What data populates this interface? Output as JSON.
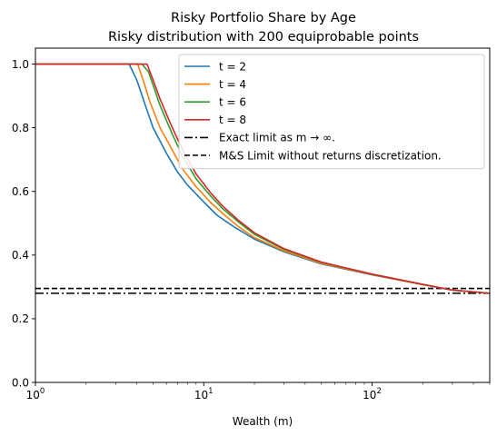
{
  "chart_data": {
    "type": "line",
    "title": "Risky Portfolio Share by Age",
    "subtitle": "Risky distribution with 200 equiprobable points",
    "xlabel": "Wealth (m)",
    "ylabel": "",
    "xscale": "log",
    "xlim": [
      1,
      500
    ],
    "ylim": [
      0,
      1.05
    ],
    "grid": false,
    "legend_position": "top-right",
    "x_ticks": [
      {
        "value": 1,
        "base": "10",
        "exp": "0"
      },
      {
        "value": 10,
        "base": "10",
        "exp": "1"
      },
      {
        "value": 100,
        "base": "10",
        "exp": "2"
      }
    ],
    "y_ticks": [
      {
        "value": 0,
        "label": "0.0"
      },
      {
        "value": 0.2,
        "label": "0.2"
      },
      {
        "value": 0.4,
        "label": "0.4"
      },
      {
        "value": 0.6,
        "label": "0.6"
      },
      {
        "value": 0.8,
        "label": "0.8"
      },
      {
        "value": 1.0,
        "label": "1.0"
      }
    ],
    "series": [
      {
        "name": "t = 2",
        "color": "#1f77b4",
        "x": [
          1,
          3.6,
          4.0,
          4.5,
          5.0,
          6,
          7,
          8,
          10,
          12,
          15,
          20,
          30,
          50,
          100,
          200,
          300,
          500
        ],
        "y": [
          1.0,
          1.0,
          0.95,
          0.87,
          0.8,
          0.72,
          0.66,
          0.62,
          0.567,
          0.525,
          0.49,
          0.45,
          0.41,
          0.372,
          0.338,
          0.307,
          0.29,
          0.28
        ]
      },
      {
        "name": "t = 4",
        "color": "#ff7f0e",
        "x": [
          1,
          4.05,
          4.3,
          4.8,
          5.5,
          6.5,
          7.5,
          9,
          11,
          13,
          16,
          20,
          30,
          50,
          100,
          200,
          300,
          500
        ],
        "y": [
          1.0,
          1.0,
          0.96,
          0.88,
          0.8,
          0.73,
          0.67,
          0.615,
          0.565,
          0.53,
          0.49,
          0.455,
          0.413,
          0.374,
          0.339,
          0.307,
          0.29,
          0.28
        ]
      },
      {
        "name": "t = 6",
        "color": "#2ca02c",
        "x": [
          1,
          4.3,
          4.7,
          5.5,
          6.5,
          7.5,
          9,
          11,
          13,
          16,
          20,
          30,
          50,
          100,
          200,
          300,
          500
        ],
        "y": [
          1.0,
          1.0,
          0.975,
          0.87,
          0.78,
          0.71,
          0.64,
          0.585,
          0.545,
          0.505,
          0.465,
          0.418,
          0.377,
          0.34,
          0.308,
          0.29,
          0.28
        ]
      },
      {
        "name": "t = 8",
        "color": "#d62728",
        "x": [
          1,
          4.6,
          5.0,
          5.5,
          6.5,
          7.5,
          9,
          11,
          13,
          16,
          20,
          30,
          50,
          100,
          200,
          300,
          500
        ],
        "y": [
          1.0,
          1.0,
          0.95,
          0.89,
          0.8,
          0.73,
          0.655,
          0.595,
          0.553,
          0.51,
          0.47,
          0.42,
          0.378,
          0.34,
          0.308,
          0.29,
          0.28
        ]
      }
    ],
    "reference_lines": [
      {
        "name": "Exact limit as m → ∞.",
        "value": 0.28,
        "style": "dash-dot",
        "color": "#000000"
      },
      {
        "name": "M&S Limit without returns discretization.",
        "value": 0.295,
        "style": "dashed",
        "color": "#000000"
      }
    ]
  }
}
